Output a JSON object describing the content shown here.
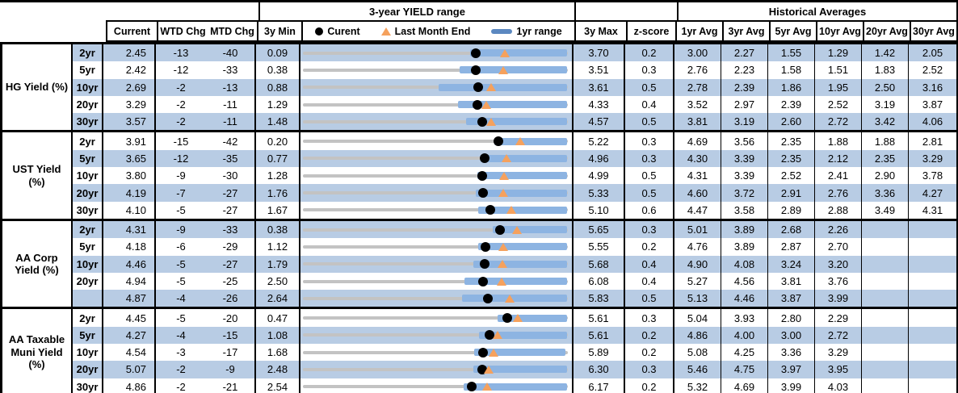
{
  "header": {
    "range_title": "3-year YIELD range",
    "hist_title": "Historical Averages",
    "current": "Current",
    "wtd": "WTD Chg",
    "mtd": "MTD Chg",
    "min": "3y Min",
    "max": "3y Max",
    "z": "z-score",
    "avg_cols": [
      "1yr Avg",
      "3yr Avg",
      "5yr Avg",
      "10yr Avg",
      "20yr Avg",
      "30yr Avg"
    ]
  },
  "legend": {
    "current": "Curent",
    "last_month_end": "Last Month End",
    "range": "1yr range"
  },
  "colors": {
    "band": "#b8cce4",
    "range_bar": "#8db4e2",
    "track": "#c3c3c3",
    "current_marker": "#000000",
    "last_month_end_marker": "#f5a15d",
    "legend_bar": "#5b88c0"
  },
  "chart_data": {
    "type": "table",
    "title": "3-year YIELD range",
    "note": "Each row renders a bullet chart from 3y Min to 3y Max: gray full-range track, blue 1yr range bar, black dot = Current, orange triangle = Last Month End.",
    "groups": [
      {
        "label": "HG Yield (%)",
        "rows": [
          {
            "tenor": "2yr",
            "current": "2.45",
            "wtd": "-13",
            "mtd": "-40",
            "min3y": "0.09",
            "max3y": "3.70",
            "z": "0.2",
            "avgs": [
              "3.00",
              "2.27",
              "1.55",
              "1.29",
              "1.42",
              "2.05"
            ],
            "marker_current": 2.45,
            "marker_lme": 2.85,
            "range_1yr": [
              2.37,
              3.7
            ]
          },
          {
            "tenor": "5yr",
            "current": "2.42",
            "wtd": "-12",
            "mtd": "-33",
            "min3y": "0.38",
            "max3y": "3.51",
            "z": "0.3",
            "avgs": [
              "2.76",
              "2.23",
              "1.58",
              "1.51",
              "1.83",
              "2.52"
            ],
            "marker_current": 2.42,
            "marker_lme": 2.75,
            "range_1yr": [
              2.23,
              3.51
            ]
          },
          {
            "tenor": "10yr",
            "current": "2.69",
            "wtd": "-2",
            "mtd": "-13",
            "min3y": "0.88",
            "max3y": "3.61",
            "z": "0.5",
            "avgs": [
              "2.78",
              "2.39",
              "1.86",
              "1.95",
              "2.50",
              "3.16"
            ],
            "marker_current": 2.69,
            "marker_lme": 2.82,
            "range_1yr": [
              2.28,
              3.61
            ]
          },
          {
            "tenor": "20yr",
            "current": "3.29",
            "wtd": "-2",
            "mtd": "-11",
            "min3y": "1.29",
            "max3y": "4.33",
            "z": "0.4",
            "avgs": [
              "3.52",
              "2.97",
              "2.39",
              "2.52",
              "3.19",
              "3.87"
            ],
            "marker_current": 3.29,
            "marker_lme": 3.4,
            "range_1yr": [
              3.07,
              4.33
            ]
          },
          {
            "tenor": "30yr",
            "current": "3.57",
            "wtd": "-2",
            "mtd": "-11",
            "min3y": "1.48",
            "max3y": "4.57",
            "z": "0.5",
            "avgs": [
              "3.81",
              "3.19",
              "2.60",
              "2.72",
              "3.42",
              "4.06"
            ],
            "marker_current": 3.57,
            "marker_lme": 3.68,
            "range_1yr": [
              3.38,
              4.57
            ]
          }
        ]
      },
      {
        "label": "UST Yield (%)",
        "rows": [
          {
            "tenor": "2yr",
            "current": "3.91",
            "wtd": "-15",
            "mtd": "-42",
            "min3y": "0.20",
            "max3y": "5.22",
            "z": "0.3",
            "avgs": [
              "4.69",
              "3.56",
              "2.35",
              "1.88",
              "1.88",
              "2.81"
            ],
            "marker_current": 3.91,
            "marker_lme": 4.33,
            "range_1yr": [
              3.83,
              5.22
            ]
          },
          {
            "tenor": "5yr",
            "current": "3.65",
            "wtd": "-12",
            "mtd": "-35",
            "min3y": "0.77",
            "max3y": "4.96",
            "z": "0.3",
            "avgs": [
              "4.30",
              "3.39",
              "2.35",
              "2.12",
              "2.35",
              "3.29"
            ],
            "marker_current": 3.65,
            "marker_lme": 4.0,
            "range_1yr": [
              3.59,
              4.96
            ]
          },
          {
            "tenor": "10yr",
            "current": "3.80",
            "wtd": "-9",
            "mtd": "-30",
            "min3y": "1.28",
            "max3y": "4.99",
            "z": "0.5",
            "avgs": [
              "4.31",
              "3.39",
              "2.52",
              "2.41",
              "2.90",
              "3.78"
            ],
            "marker_current": 3.8,
            "marker_lme": 4.1,
            "range_1yr": [
              3.73,
              4.99
            ]
          },
          {
            "tenor": "20yr",
            "current": "4.19",
            "wtd": "-7",
            "mtd": "-27",
            "min3y": "1.76",
            "max3y": "5.33",
            "z": "0.5",
            "avgs": [
              "4.60",
              "3.72",
              "2.91",
              "2.76",
              "3.36",
              "4.27"
            ],
            "marker_current": 4.19,
            "marker_lme": 4.46,
            "range_1yr": [
              4.09,
              5.33
            ]
          },
          {
            "tenor": "30yr",
            "current": "4.10",
            "wtd": "-5",
            "mtd": "-27",
            "min3y": "1.67",
            "max3y": "5.10",
            "z": "0.6",
            "avgs": [
              "4.47",
              "3.58",
              "2.89",
              "2.88",
              "3.49",
              "4.31"
            ],
            "marker_current": 4.1,
            "marker_lme": 4.37,
            "range_1yr": [
              3.94,
              5.1
            ]
          }
        ]
      },
      {
        "label": "AA Corp Yield (%)",
        "rows": [
          {
            "tenor": "2yr",
            "current": "4.31",
            "wtd": "-9",
            "mtd": "-33",
            "min3y": "0.38",
            "max3y": "5.65",
            "z": "0.3",
            "avgs": [
              "5.01",
              "3.89",
              "2.68",
              "2.26",
              "",
              ""
            ],
            "marker_current": 4.31,
            "marker_lme": 4.64,
            "range_1yr": [
              4.16,
              5.65
            ]
          },
          {
            "tenor": "5yr",
            "current": "4.18",
            "wtd": "-6",
            "mtd": "-29",
            "min3y": "1.12",
            "max3y": "5.55",
            "z": "0.2",
            "avgs": [
              "4.76",
              "3.89",
              "2.87",
              "2.70",
              "",
              ""
            ],
            "marker_current": 4.18,
            "marker_lme": 4.47,
            "range_1yr": [
              4.05,
              5.55
            ]
          },
          {
            "tenor": "10yr",
            "current": "4.46",
            "wtd": "-5",
            "mtd": "-27",
            "min3y": "1.79",
            "max3y": "5.68",
            "z": "0.4",
            "avgs": [
              "4.90",
              "4.08",
              "3.24",
              "3.20",
              "",
              ""
            ],
            "marker_current": 4.46,
            "marker_lme": 4.73,
            "range_1yr": [
              4.3,
              5.68
            ]
          },
          {
            "tenor": "20yr",
            "current": "4.94",
            "wtd": "-5",
            "mtd": "-25",
            "min3y": "2.50",
            "max3y": "6.08",
            "z": "0.4",
            "avgs": [
              "5.27",
              "4.56",
              "3.81",
              "3.76",
              "",
              ""
            ],
            "marker_current": 4.94,
            "marker_lme": 5.19,
            "range_1yr": [
              4.68,
              6.08
            ]
          },
          {
            "tenor": "",
            "current": "4.87",
            "wtd": "-4",
            "mtd": "-26",
            "min3y": "2.64",
            "max3y": "5.83",
            "z": "0.5",
            "avgs": [
              "5.13",
              "4.46",
              "3.87",
              "3.99",
              "",
              ""
            ],
            "marker_current": 4.87,
            "marker_lme": 5.13,
            "range_1yr": [
              4.56,
              5.83
            ]
          }
        ]
      },
      {
        "label": "AA Taxable Muni Yield (%)",
        "rows": [
          {
            "tenor": "2yr",
            "current": "4.45",
            "wtd": "-5",
            "mtd": "-20",
            "min3y": "0.47",
            "max3y": "5.61",
            "z": "0.3",
            "avgs": [
              "5.04",
              "3.93",
              "2.80",
              "2.29",
              "",
              ""
            ],
            "marker_current": 4.45,
            "marker_lme": 4.65,
            "range_1yr": [
              4.25,
              5.61
            ]
          },
          {
            "tenor": "5yr",
            "current": "4.27",
            "wtd": "-4",
            "mtd": "-15",
            "min3y": "1.08",
            "max3y": "5.61",
            "z": "0.2",
            "avgs": [
              "4.86",
              "4.00",
              "3.00",
              "2.72",
              "",
              ""
            ],
            "marker_current": 4.27,
            "marker_lme": 4.42,
            "range_1yr": [
              4.1,
              5.61
            ]
          },
          {
            "tenor": "10yr",
            "current": "4.54",
            "wtd": "-3",
            "mtd": "-17",
            "min3y": "1.68",
            "max3y": "5.89",
            "z": "0.2",
            "avgs": [
              "5.08",
              "4.25",
              "3.36",
              "3.29",
              "",
              ""
            ],
            "marker_current": 4.54,
            "marker_lme": 4.71,
            "range_1yr": [
              4.4,
              5.87
            ]
          },
          {
            "tenor": "20yr",
            "current": "5.07",
            "wtd": "-2",
            "mtd": "-9",
            "min3y": "2.48",
            "max3y": "6.30",
            "z": "0.3",
            "avgs": [
              "5.46",
              "4.75",
              "3.97",
              "3.95",
              "",
              ""
            ],
            "marker_current": 5.07,
            "marker_lme": 5.16,
            "range_1yr": [
              4.94,
              6.3
            ]
          },
          {
            "tenor": "30yr",
            "current": "4.86",
            "wtd": "-2",
            "mtd": "-21",
            "min3y": "2.54",
            "max3y": "6.17",
            "z": "0.2",
            "avgs": [
              "5.32",
              "4.69",
              "3.99",
              "4.03",
              "",
              ""
            ],
            "marker_current": 4.86,
            "marker_lme": 5.07,
            "range_1yr": [
              4.74,
              6.17
            ]
          }
        ]
      }
    ]
  }
}
